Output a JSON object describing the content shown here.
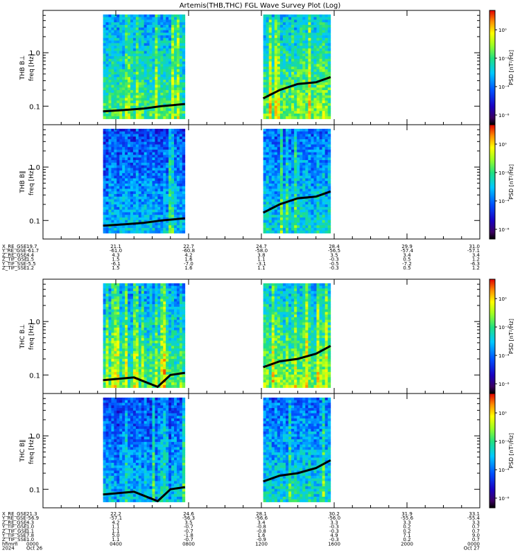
{
  "title": "Artemis(THB,THC) FGL Wave Survey Plot (Log)",
  "colorbar": {
    "label": "PSD [nT²/Hz]",
    "ticks": [
      "10⁰",
      "10⁻²",
      "10⁻⁴",
      "10⁻⁶"
    ]
  },
  "freq_ticks": [
    "1.0",
    "0.1"
  ],
  "chart_data": [
    {
      "type": "heatmap",
      "ylabel_probe": "THB B⊥",
      "ylabel_freq": "freq [Hz]",
      "y_scale": "log",
      "zlabel": "PSD [nT²/Hz]",
      "z_scale": "log",
      "data_intervals_hr": [
        [
          3.3,
          7.8
        ],
        [
          12.1,
          15.8
        ]
      ],
      "cyclotron_freq_line_hz": [
        [
          3.3,
          0.08
        ],
        [
          4.5,
          0.085
        ],
        [
          5.5,
          0.09
        ],
        [
          6.5,
          0.1
        ],
        [
          7.8,
          0.11
        ],
        [
          12.1,
          0.14
        ],
        [
          13.0,
          0.2
        ],
        [
          14.0,
          0.26
        ],
        [
          15.0,
          0.28
        ],
        [
          15.8,
          0.35
        ]
      ]
    },
    {
      "type": "heatmap",
      "ylabel_probe": "THB B∥",
      "ylabel_freq": "freq [Hz]",
      "y_scale": "log",
      "zlabel": "PSD [nT²/Hz]",
      "z_scale": "log",
      "data_intervals_hr": [
        [
          3.3,
          7.8
        ],
        [
          12.1,
          15.8
        ]
      ],
      "cyclotron_freq_line_hz": [
        [
          3.3,
          0.08
        ],
        [
          4.5,
          0.085
        ],
        [
          5.5,
          0.09
        ],
        [
          6.5,
          0.1
        ],
        [
          7.8,
          0.11
        ],
        [
          12.1,
          0.14
        ],
        [
          13.0,
          0.2
        ],
        [
          14.0,
          0.26
        ],
        [
          15.0,
          0.28
        ],
        [
          15.8,
          0.35
        ]
      ]
    },
    {
      "type": "heatmap",
      "ylabel_probe": "THC B⊥",
      "ylabel_freq": "freq [Hz]",
      "y_scale": "log",
      "zlabel": "PSD [nT²/Hz]",
      "z_scale": "log",
      "data_intervals_hr": [
        [
          3.3,
          7.8
        ],
        [
          12.1,
          15.8
        ]
      ],
      "cyclotron_freq_line_hz": [
        [
          3.3,
          0.08
        ],
        [
          5.0,
          0.09
        ],
        [
          6.3,
          0.06
        ],
        [
          7.0,
          0.1
        ],
        [
          7.8,
          0.11
        ],
        [
          12.1,
          0.14
        ],
        [
          13.0,
          0.18
        ],
        [
          14.0,
          0.2
        ],
        [
          15.0,
          0.25
        ],
        [
          15.8,
          0.35
        ]
      ]
    },
    {
      "type": "heatmap",
      "ylabel_probe": "THC B∥",
      "ylabel_freq": "freq [Hz]",
      "y_scale": "log",
      "zlabel": "PSD [nT²/Hz]",
      "z_scale": "log",
      "data_intervals_hr": [
        [
          3.3,
          7.8
        ],
        [
          12.1,
          15.8
        ]
      ],
      "cyclotron_freq_line_hz": [
        [
          3.3,
          0.08
        ],
        [
          5.0,
          0.09
        ],
        [
          6.3,
          0.06
        ],
        [
          7.0,
          0.1
        ],
        [
          7.8,
          0.11
        ],
        [
          12.1,
          0.14
        ],
        [
          13.0,
          0.18
        ],
        [
          14.0,
          0.2
        ],
        [
          15.0,
          0.25
        ],
        [
          15.8,
          0.35
        ]
      ]
    }
  ],
  "ephem_thb": {
    "labels": [
      "X_RE_GSE",
      "Y_RE_GSE",
      "Z_RE_GSE",
      "Z_TIF_GSE",
      "Y_TIF_SSE",
      "Z_TIF_SSE"
    ],
    "columns": [
      [
        "19.7",
        "-61.7",
        "4.4",
        "1.5",
        "-5.5",
        "1.2"
      ],
      [
        "21.1",
        "-61.0",
        "4.3",
        "1.5",
        "-6.1",
        "1.5"
      ],
      [
        "22.7",
        "-60.8",
        "4.2",
        "1.6",
        "-7.0",
        "1.6"
      ],
      [
        "24.7",
        "-58.0",
        "3.8",
        "1.1",
        "-3.1",
        "1.1"
      ],
      [
        "28.4",
        "-56.5",
        "3.5",
        "-0.3",
        "-0.5",
        "-0.3"
      ],
      [
        "29.9",
        "-57.4",
        "3.4",
        "0.5",
        "-7.2",
        "0.5"
      ],
      [
        "31.0",
        "-57.1",
        "3.4",
        "1.2",
        "-6.3",
        "1.2"
      ]
    ]
  },
  "ephem_thc": {
    "labels": [
      "X_RE_GSE",
      "Y_RE_GSE",
      "Z_RE_GSE",
      "Y_TIF_GSE",
      "Z_TIF_GSE",
      "Y_TIF_SSE",
      "Z_TIF_SSE",
      "hhmm",
      "2024"
    ],
    "columns": [
      [
        "21.3",
        "-56.9",
        "4.3",
        "1.0",
        "1.1",
        "7.8",
        "1.0",
        "0000",
        "Oct 26"
      ],
      [
        "22.2",
        "-57.1",
        "4.2",
        "1.1",
        "1.1",
        "5.0",
        "1.1",
        "0400",
        ""
      ],
      [
        "24.6",
        "-56.3",
        "3.5",
        "-0.7",
        "-0.7",
        "-1.8",
        "-0.7",
        "0800",
        ""
      ],
      [
        "28.1",
        "-56.6",
        "3.4",
        "-0.8",
        "-0.8",
        "1.6",
        "-0.9",
        "1200",
        ""
      ],
      [
        "30.2",
        "-56.0",
        "3.3",
        "-0.3",
        "-0.3",
        "4.9",
        "-0.3",
        "1600",
        ""
      ],
      [
        "31.9",
        "-55.6",
        "3.3",
        "0.2",
        "0.2",
        "7.1",
        "0.2",
        "2000",
        ""
      ],
      [
        "33.1",
        "-55.4",
        "3.3",
        "0.7",
        "0.7",
        "9.0",
        "0.7",
        "0000",
        "Oct 27"
      ]
    ]
  }
}
